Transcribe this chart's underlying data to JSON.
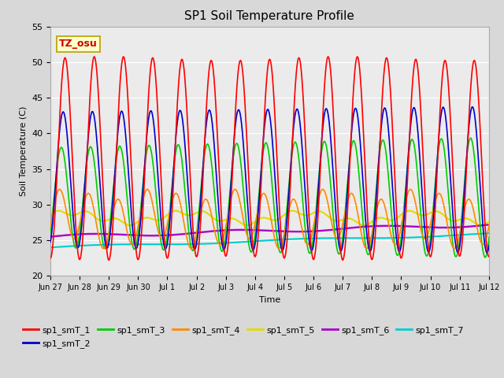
{
  "title": "SP1 Soil Temperature Profile",
  "xlabel": "Time",
  "ylabel": "Soil Temperature (C)",
  "ylim": [
    20,
    55
  ],
  "annotation_text": "TZ_osu",
  "annotation_bg": "#FFFFC8",
  "annotation_border": "#B8A000",
  "annotation_fg": "#CC0000",
  "series_colors": {
    "sp1_smT_1": "#FF0000",
    "sp1_smT_2": "#0000CC",
    "sp1_smT_3": "#00CC00",
    "sp1_smT_4": "#FF8800",
    "sp1_smT_5": "#DDDD00",
    "sp1_smT_6": "#AA00CC",
    "sp1_smT_7": "#00CCCC"
  },
  "x_tick_labels": [
    "Jun 27",
    "Jun 28",
    "Jun 29",
    "Jun 30",
    "Jul 1",
    "Jul 2",
    "Jul 3",
    "Jul 4",
    "Jul 5",
    "Jul 6",
    "Jul 7",
    "Jul 8",
    "Jul 9",
    "Jul 10",
    "Jul 11",
    "Jul 12"
  ],
  "bg_color": "#D8D8D8",
  "plot_bg": "#EBEBEB",
  "grid_color": "#FFFFFF",
  "linewidth": 1.2
}
